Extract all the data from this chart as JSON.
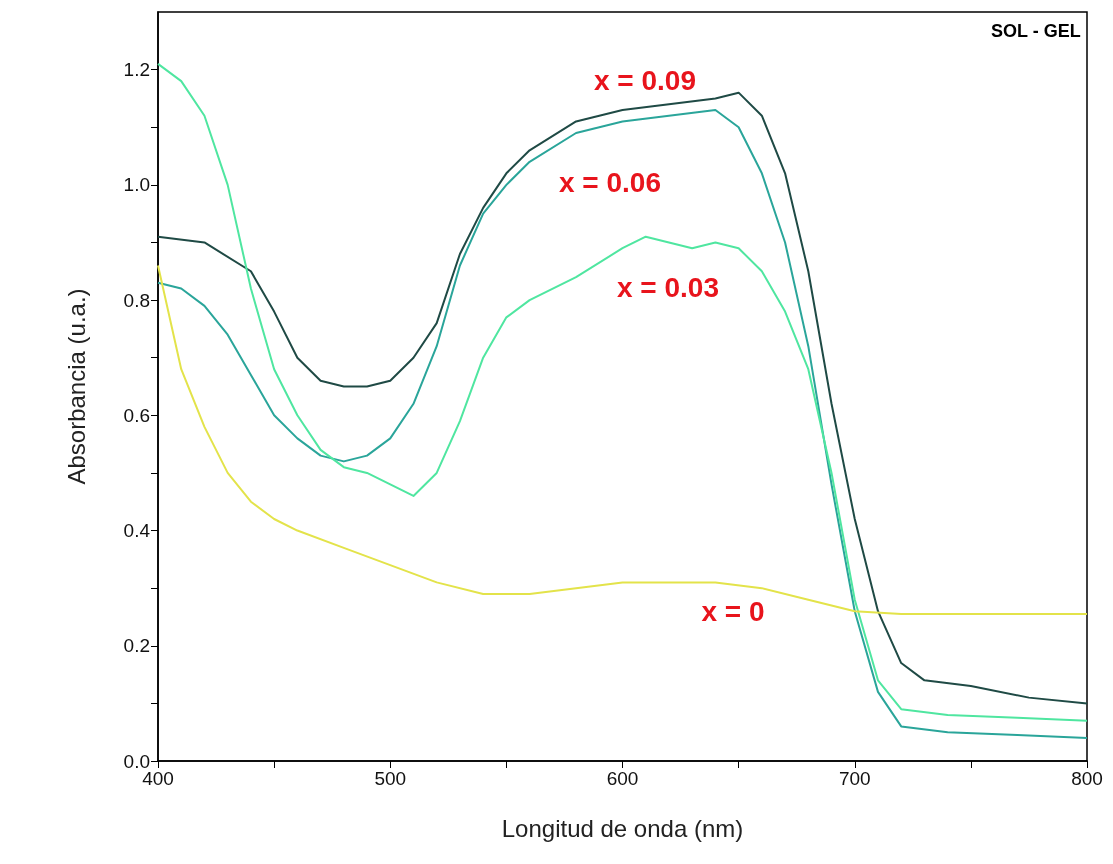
{
  "chart_data": {
    "type": "line",
    "xlabel": "Longitud de onda (nm)",
    "ylabel": "Absorbancia (u.a.)",
    "xlim": [
      400,
      800
    ],
    "xticks": [
      400,
      500,
      600,
      700,
      800
    ],
    "ylim": [
      0,
      1.3
    ],
    "yticks": [
      {
        "value": 0,
        "label": "0.0"
      },
      {
        "value": 0.2,
        "label": "0.2"
      },
      {
        "value": 0.4,
        "label": "0.4"
      },
      {
        "value": 0.6,
        "label": "0.6"
      },
      {
        "value": 0.8,
        "label": "0.8"
      },
      {
        "value": 1.0,
        "label": "1.0"
      },
      {
        "value": 1.2,
        "label": "1.2"
      }
    ],
    "grid": false,
    "marker": "none",
    "line_style": "solid",
    "series": [
      {
        "color": "#1f4a45",
        "x": [
          400,
          420,
          440,
          450,
          460,
          470,
          480,
          490,
          500,
          510,
          520,
          530,
          540,
          550,
          560,
          580,
          600,
          620,
          640,
          650,
          660,
          670,
          680,
          690,
          700,
          710,
          720,
          730,
          750,
          775,
          800
        ],
        "values": [
          0.91,
          0.9,
          0.85,
          0.78,
          0.7,
          0.66,
          0.65,
          0.65,
          0.66,
          0.7,
          0.76,
          0.88,
          0.96,
          1.02,
          1.06,
          1.11,
          1.13,
          1.14,
          1.15,
          1.16,
          1.12,
          1.02,
          0.85,
          0.62,
          0.42,
          0.26,
          0.17,
          0.14,
          0.13,
          0.11,
          0.1
        ]
      },
      {
        "color": "#2aa59a",
        "x": [
          400,
          410,
          420,
          430,
          440,
          450,
          460,
          470,
          480,
          490,
          500,
          510,
          520,
          530,
          540,
          550,
          560,
          580,
          600,
          620,
          640,
          650,
          660,
          670,
          680,
          690,
          700,
          710,
          720,
          740,
          770,
          800
        ],
        "values": [
          0.83,
          0.82,
          0.79,
          0.74,
          0.67,
          0.6,
          0.56,
          0.53,
          0.52,
          0.53,
          0.56,
          0.62,
          0.72,
          0.86,
          0.95,
          1.0,
          1.04,
          1.09,
          1.11,
          1.12,
          1.13,
          1.1,
          1.02,
          0.9,
          0.72,
          0.48,
          0.26,
          0.12,
          0.06,
          0.05,
          0.045,
          0.04
        ]
      },
      {
        "color": "#4fe6a0",
        "x": [
          400,
          410,
          420,
          430,
          440,
          450,
          460,
          470,
          480,
          490,
          500,
          510,
          520,
          530,
          540,
          550,
          560,
          580,
          600,
          610,
          620,
          630,
          640,
          650,
          660,
          670,
          680,
          690,
          700,
          710,
          720,
          740,
          770,
          800
        ],
        "values": [
          1.21,
          1.18,
          1.12,
          1.0,
          0.82,
          0.68,
          0.6,
          0.54,
          0.51,
          0.5,
          0.48,
          0.46,
          0.5,
          0.59,
          0.7,
          0.77,
          0.8,
          0.84,
          0.89,
          0.91,
          0.9,
          0.89,
          0.9,
          0.89,
          0.85,
          0.78,
          0.68,
          0.5,
          0.28,
          0.14,
          0.09,
          0.08,
          0.075,
          0.07
        ]
      },
      {
        "color": "#e3e34a",
        "x": [
          400,
          410,
          420,
          430,
          440,
          450,
          460,
          480,
          500,
          520,
          540,
          560,
          580,
          600,
          620,
          640,
          660,
          680,
          700,
          720,
          760,
          800
        ],
        "values": [
          0.86,
          0.68,
          0.58,
          0.5,
          0.45,
          0.42,
          0.4,
          0.37,
          0.34,
          0.31,
          0.29,
          0.29,
          0.3,
          0.31,
          0.31,
          0.31,
          0.3,
          0.28,
          0.26,
          0.255,
          0.255,
          0.255
        ]
      }
    ],
    "annotations": [
      "SOL - GEL",
      "x = 0.09",
      "x = 0.06",
      "x = 0.03",
      "x = 0"
    ]
  }
}
